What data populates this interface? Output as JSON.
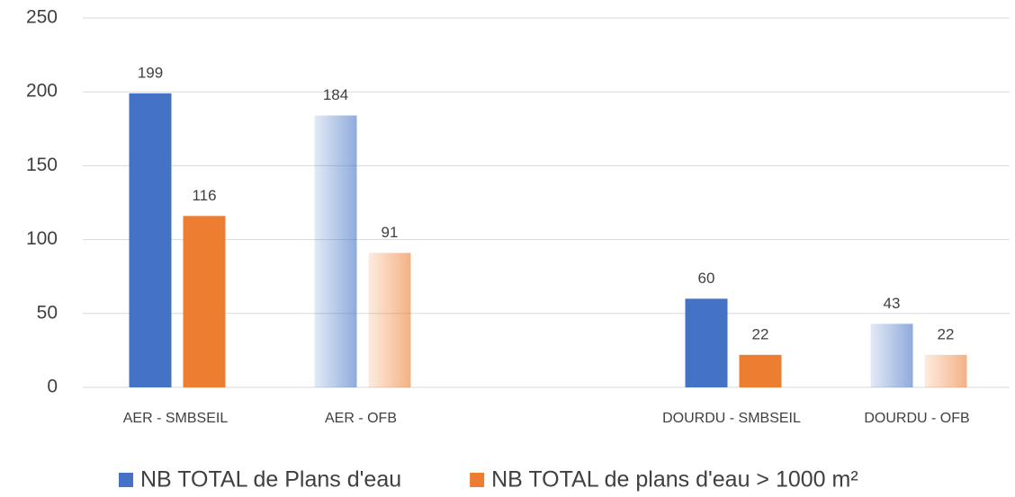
{
  "chart_data": {
    "type": "bar",
    "categories": [
      "AER - SMBSEIL",
      "AER - OFB",
      null,
      "DOURDU - SMBSEIL",
      "DOURDU - OFB"
    ],
    "series": [
      {
        "name": "NB TOTAL de Plans d'eau",
        "color": "#4472c4",
        "values": [
          199,
          184,
          null,
          60,
          43
        ],
        "fills": [
          "solid",
          "gradient",
          null,
          "solid",
          "gradient"
        ]
      },
      {
        "name": "NB TOTAL de plans d'eau > 1000 m²",
        "color": "#ed7d31",
        "values": [
          116,
          91,
          null,
          22,
          22
        ],
        "fills": [
          "solid",
          "gradient",
          null,
          "solid",
          "gradient"
        ]
      }
    ],
    "ylim": [
      0,
      250
    ],
    "yticks": [
      0,
      50,
      100,
      150,
      200,
      250
    ],
    "grid": true,
    "legend": "bottom"
  }
}
